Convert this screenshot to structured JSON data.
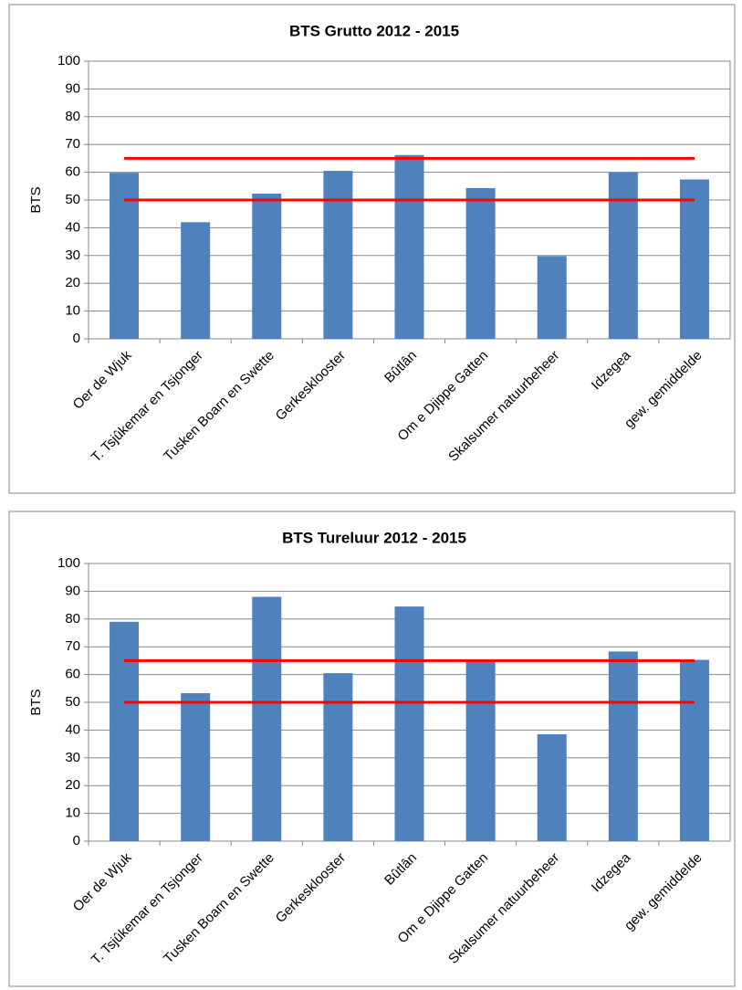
{
  "chart_data": [
    {
      "type": "bar",
      "title": "BTS Grutto 2012  - 2015",
      "y_label": "BTS",
      "categories": [
        "Oer de Wjuk",
        "T. Tsjûkemar en Tsjonger",
        "Tusken Boarn en Swette",
        "Gerkesklooster",
        "Bûtlân",
        "Om e Djippe Gatten",
        "Skalsumer natuurbeheer",
        "Idzegea",
        "gew. gemiddelde"
      ],
      "values": [
        59.8,
        42,
        52.3,
        60.5,
        66.2,
        54.3,
        29.8,
        60,
        57.4
      ],
      "color": "#4f81bd",
      "reference_lines": [
        65,
        50
      ],
      "reference_color": "#ff0000",
      "ylim": [
        0,
        100
      ],
      "yticks": [
        0,
        10,
        20,
        30,
        40,
        50,
        60,
        70,
        80,
        90,
        100
      ],
      "grid": true
    },
    {
      "type": "bar",
      "title": "BTS Tureluur  2012 - 2015",
      "y_label": "BTS",
      "categories": [
        "Oer de Wjuk",
        "T. Tsjûkemar en Tsjonger",
        "Tusken Boarn en Swette",
        "Gerkesklooster",
        "Bûtlân",
        "Om e Djippe Gatten",
        "Skalsumer natuurbeheer",
        "Idzegea",
        "gew. gemiddelde"
      ],
      "values": [
        79,
        53.3,
        88,
        60.5,
        84.5,
        65,
        38.5,
        68.3,
        65.3
      ],
      "color": "#4f81bd",
      "reference_lines": [
        65,
        50
      ],
      "reference_color": "#ff0000",
      "ylim": [
        0,
        100
      ],
      "yticks": [
        0,
        10,
        20,
        30,
        40,
        50,
        60,
        70,
        80,
        90,
        100
      ],
      "grid": true
    }
  ]
}
